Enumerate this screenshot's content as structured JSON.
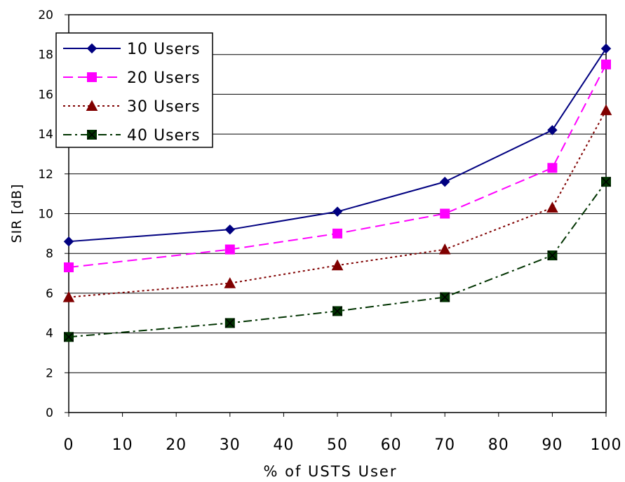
{
  "chart_data": {
    "type": "line",
    "xlabel": "% of USTS User",
    "ylabel": "SIR [dB]",
    "xlim": [
      0,
      100
    ],
    "ylim": [
      0,
      20
    ],
    "x_ticks": [
      "0",
      "10",
      "20",
      "30",
      "40",
      "50",
      "60",
      "70",
      "80",
      "90",
      "100"
    ],
    "y_ticks": [
      "0",
      "2",
      "4",
      "6",
      "8",
      "10",
      "12",
      "14",
      "16",
      "18",
      "20"
    ],
    "grid": "horizontal",
    "legend_position": "top-left",
    "x": [
      0,
      30,
      50,
      70,
      90,
      100
    ],
    "series": [
      {
        "name": "10 Users",
        "values": [
          8.6,
          9.2,
          10.1,
          11.6,
          14.2,
          18.3
        ],
        "color": "#000080",
        "marker": "diamond",
        "dash": "solid"
      },
      {
        "name": "20 Users",
        "values": [
          7.3,
          8.2,
          9.0,
          10.0,
          12.3,
          17.5
        ],
        "color": "#FF00FF",
        "marker": "square",
        "dash": "dashed"
      },
      {
        "name": "30 Users",
        "values": [
          5.8,
          6.5,
          7.4,
          8.2,
          10.3,
          15.2
        ],
        "color": "#800000",
        "marker": "triangle",
        "dash": "dotted"
      },
      {
        "name": "40 Users",
        "values": [
          3.8,
          4.5,
          5.1,
          5.8,
          7.9,
          11.6
        ],
        "color": "#003300",
        "marker": "square-x",
        "dash": "dashdot"
      }
    ]
  }
}
